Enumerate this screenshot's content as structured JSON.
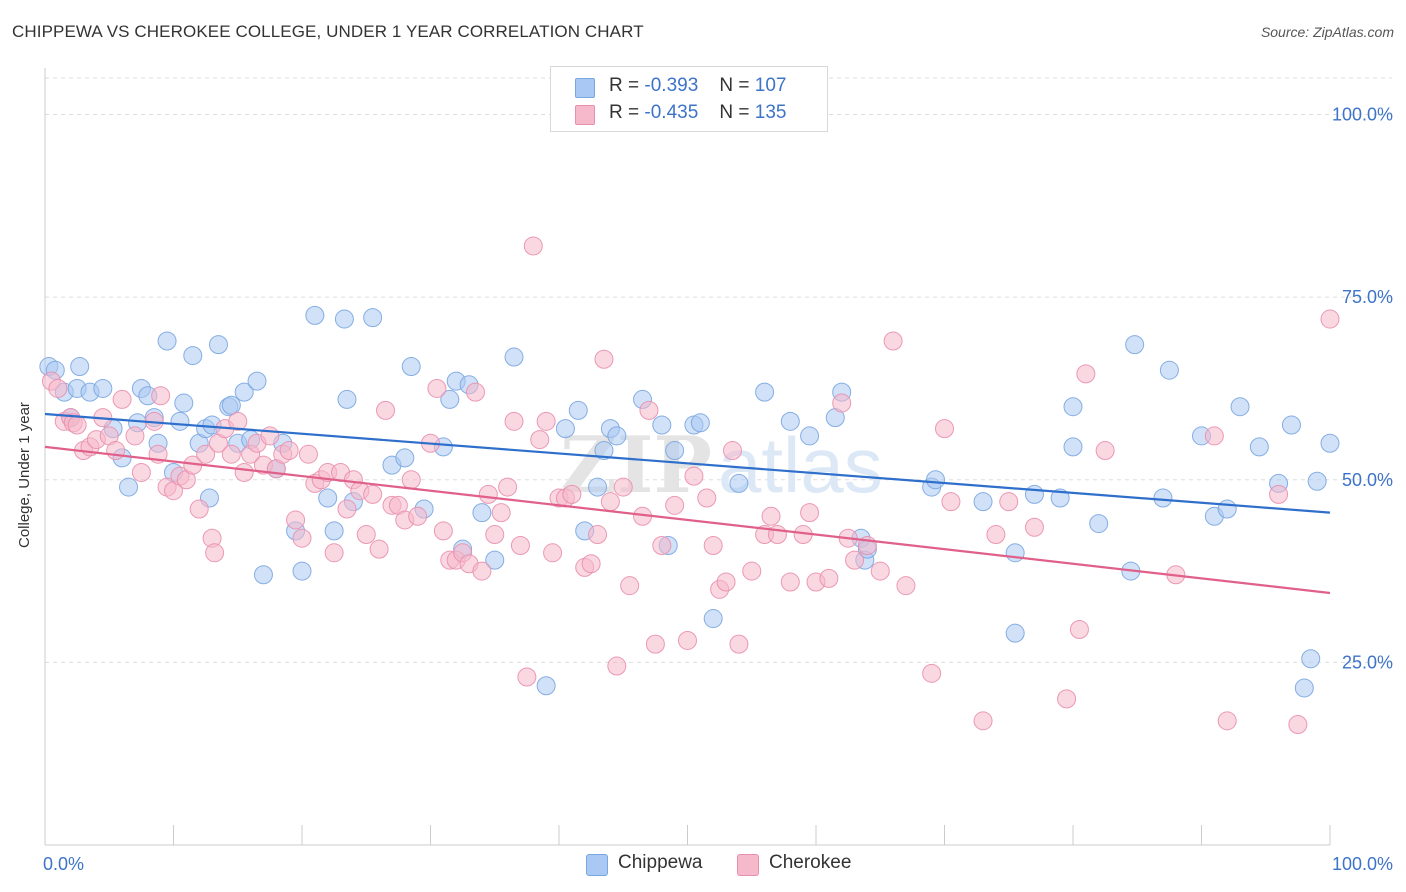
{
  "header": {
    "title": "CHIPPEWA VS CHEROKEE COLLEGE, UNDER 1 YEAR CORRELATION CHART",
    "source": "Source: ZipAtlas.com"
  },
  "legend": {
    "rows": [
      {
        "r_label": "R =",
        "r_value": "-0.393",
        "n_label": "N =",
        "n_value": "107"
      },
      {
        "r_label": "R =",
        "r_value": "-0.435",
        "n_label": "N =",
        "n_value": "135"
      }
    ]
  },
  "bottom_legend": {
    "items": [
      "Chippewa",
      "Cherokee"
    ]
  },
  "colors": {
    "chippewa_fill": "#a9c8f3",
    "chippewa_stroke": "#7aa6e0",
    "chippewa_line": "#2f6fcc",
    "cherokee_fill": "#f6b8cb",
    "cherokee_stroke": "#e98fae",
    "cherokee_line": "#e0608a",
    "axis_label": "#3d73c8",
    "grid": "#dddddd"
  },
  "chart_data": {
    "type": "scatter",
    "title": "CHIPPEWA VS CHEROKEE COLLEGE, UNDER 1 YEAR CORRELATION CHART",
    "xlabel": "",
    "ylabel": "College, Under 1 year",
    "xlim": [
      0,
      100
    ],
    "ylim": [
      0,
      105
    ],
    "x_tick_labels": [
      "0.0%",
      "100.0%"
    ],
    "y_tick_labels": [
      "25.0%",
      "50.0%",
      "75.0%",
      "100.0%"
    ],
    "y_ticks": [
      25,
      50,
      75,
      100
    ],
    "grid": true,
    "legend_position": "top-center",
    "watermark": "ZIPatlas",
    "series": [
      {
        "name": "Chippewa",
        "r": -0.393,
        "n": 107,
        "trend": {
          "x": [
            0,
            100
          ],
          "y": [
            59.0,
            45.5
          ]
        },
        "points": [
          [
            0.3,
            65.5
          ],
          [
            0.8,
            65.0
          ],
          [
            1.5,
            62.0
          ],
          [
            2.0,
            58.5
          ],
          [
            2.5,
            62.5
          ],
          [
            2.7,
            65.5
          ],
          [
            3.5,
            62.0
          ],
          [
            4.5,
            62.5
          ],
          [
            5.3,
            57.0
          ],
          [
            6.0,
            53.0
          ],
          [
            6.5,
            49.0
          ],
          [
            7.2,
            57.8
          ],
          [
            7.5,
            62.5
          ],
          [
            8.0,
            61.5
          ],
          [
            8.5,
            58.5
          ],
          [
            8.8,
            55.0
          ],
          [
            9.5,
            69.0
          ],
          [
            10.0,
            51.0
          ],
          [
            10.5,
            58.0
          ],
          [
            10.8,
            60.5
          ],
          [
            11.5,
            67.0
          ],
          [
            12.0,
            55.0
          ],
          [
            12.5,
            57.0
          ],
          [
            12.8,
            47.5
          ],
          [
            13.0,
            57.5
          ],
          [
            13.5,
            68.5
          ],
          [
            14.3,
            60.0
          ],
          [
            14.5,
            60.2
          ],
          [
            15.0,
            55.0
          ],
          [
            15.5,
            62.0
          ],
          [
            16.0,
            55.5
          ],
          [
            16.5,
            63.5
          ],
          [
            17.0,
            37.0
          ],
          [
            18.0,
            51.5
          ],
          [
            18.5,
            55.0
          ],
          [
            19.5,
            43.0
          ],
          [
            20.0,
            37.5
          ],
          [
            21.0,
            72.5
          ],
          [
            22.0,
            47.5
          ],
          [
            22.5,
            43.0
          ],
          [
            23.3,
            72.0
          ],
          [
            23.5,
            61.0
          ],
          [
            24.0,
            47.0
          ],
          [
            25.5,
            72.2
          ],
          [
            27.0,
            52.0
          ],
          [
            28.0,
            53.0
          ],
          [
            28.5,
            65.5
          ],
          [
            29.5,
            46.0
          ],
          [
            31.0,
            54.5
          ],
          [
            31.5,
            61.0
          ],
          [
            32.0,
            63.5
          ],
          [
            32.5,
            40.5
          ],
          [
            33.0,
            63.0
          ],
          [
            34.0,
            45.5
          ],
          [
            35.0,
            39.0
          ],
          [
            36.5,
            66.8
          ],
          [
            39.0,
            21.8
          ],
          [
            40.5,
            57.0
          ],
          [
            41.5,
            59.5
          ],
          [
            42.0,
            43.0
          ],
          [
            43.0,
            49.0
          ],
          [
            43.5,
            54.0
          ],
          [
            44.0,
            57.0
          ],
          [
            44.5,
            56.0
          ],
          [
            46.5,
            61.0
          ],
          [
            48.0,
            57.5
          ],
          [
            48.5,
            41.0
          ],
          [
            49.0,
            54.0
          ],
          [
            50.5,
            57.5
          ],
          [
            51.0,
            57.8
          ],
          [
            52.0,
            31.0
          ],
          [
            54.0,
            49.5
          ],
          [
            56.0,
            62.0
          ],
          [
            58.0,
            58.0
          ],
          [
            59.5,
            56.0
          ],
          [
            61.5,
            58.5
          ],
          [
            62.0,
            62.0
          ],
          [
            63.5,
            42.0
          ],
          [
            63.8,
            39.0
          ],
          [
            64.0,
            40.5
          ],
          [
            69.0,
            49.0
          ],
          [
            69.3,
            50.0
          ],
          [
            73.0,
            47.0
          ],
          [
            75.5,
            29.0
          ],
          [
            75.5,
            40.0
          ],
          [
            77.0,
            48.0
          ],
          [
            79.0,
            47.5
          ],
          [
            80.0,
            54.5
          ],
          [
            80.0,
            60.0
          ],
          [
            82.0,
            44.0
          ],
          [
            84.5,
            37.5
          ],
          [
            84.8,
            68.5
          ],
          [
            87.0,
            47.5
          ],
          [
            87.5,
            65.0
          ],
          [
            90.0,
            56.0
          ],
          [
            91.0,
            45.0
          ],
          [
            92.0,
            46.0
          ],
          [
            93.0,
            60.0
          ],
          [
            94.5,
            54.5
          ],
          [
            96.0,
            49.5
          ],
          [
            97.0,
            57.5
          ],
          [
            98.0,
            21.5
          ],
          [
            98.5,
            25.5
          ],
          [
            99.0,
            49.8
          ],
          [
            100.0,
            55.0
          ]
        ]
      },
      {
        "name": "Cherokee",
        "r": -0.435,
        "n": 135,
        "trend": {
          "x": [
            0,
            100
          ],
          "y": [
            54.5,
            34.5
          ]
        },
        "points": [
          [
            0.5,
            63.5
          ],
          [
            1.0,
            62.5
          ],
          [
            1.5,
            58.0
          ],
          [
            2.0,
            58.5
          ],
          [
            2.2,
            57.8
          ],
          [
            2.5,
            57.5
          ],
          [
            3.0,
            54.0
          ],
          [
            3.5,
            54.5
          ],
          [
            4.0,
            55.5
          ],
          [
            4.5,
            58.5
          ],
          [
            5.0,
            56.0
          ],
          [
            5.5,
            54.0
          ],
          [
            6.0,
            61.0
          ],
          [
            7.0,
            56.0
          ],
          [
            7.5,
            51.0
          ],
          [
            8.5,
            58.0
          ],
          [
            8.8,
            53.5
          ],
          [
            9.0,
            61.5
          ],
          [
            9.5,
            49.0
          ],
          [
            10.0,
            48.5
          ],
          [
            10.5,
            50.5
          ],
          [
            11.0,
            50.0
          ],
          [
            11.5,
            52.0
          ],
          [
            12.0,
            46.0
          ],
          [
            12.5,
            53.5
          ],
          [
            13.0,
            42.0
          ],
          [
            13.2,
            40.0
          ],
          [
            13.5,
            55.0
          ],
          [
            14.0,
            57.0
          ],
          [
            14.5,
            53.5
          ],
          [
            15.0,
            58.0
          ],
          [
            15.5,
            51.0
          ],
          [
            16.0,
            53.5
          ],
          [
            16.5,
            55.0
          ],
          [
            17.0,
            52.0
          ],
          [
            17.5,
            56.0
          ],
          [
            18.0,
            51.5
          ],
          [
            18.5,
            53.5
          ],
          [
            19.0,
            54.0
          ],
          [
            19.5,
            44.5
          ],
          [
            20.0,
            42.0
          ],
          [
            20.5,
            53.5
          ],
          [
            21.0,
            49.5
          ],
          [
            21.5,
            50.0
          ],
          [
            22.0,
            51.0
          ],
          [
            22.5,
            40.0
          ],
          [
            23.0,
            51.0
          ],
          [
            23.5,
            46.0
          ],
          [
            24.0,
            50.0
          ],
          [
            24.5,
            48.5
          ],
          [
            25.0,
            42.5
          ],
          [
            25.5,
            48.0
          ],
          [
            26.0,
            40.5
          ],
          [
            26.5,
            59.5
          ],
          [
            27.0,
            46.5
          ],
          [
            27.5,
            46.5
          ],
          [
            28.0,
            44.5
          ],
          [
            28.5,
            50.0
          ],
          [
            29.0,
            45.0
          ],
          [
            30.0,
            55.0
          ],
          [
            30.5,
            62.5
          ],
          [
            31.0,
            43.0
          ],
          [
            31.5,
            39.0
          ],
          [
            32.0,
            39.0
          ],
          [
            32.5,
            40.0
          ],
          [
            33.0,
            38.5
          ],
          [
            33.5,
            62.0
          ],
          [
            34.0,
            37.5
          ],
          [
            34.5,
            48.0
          ],
          [
            35.0,
            42.5
          ],
          [
            35.5,
            45.5
          ],
          [
            36.0,
            49.0
          ],
          [
            36.5,
            58.0
          ],
          [
            37.0,
            41.0
          ],
          [
            37.5,
            23.0
          ],
          [
            38.0,
            82.0
          ],
          [
            38.5,
            55.5
          ],
          [
            39.0,
            58.0
          ],
          [
            39.5,
            40.0
          ],
          [
            40.0,
            47.5
          ],
          [
            40.5,
            47.5
          ],
          [
            41.0,
            48.0
          ],
          [
            42.0,
            38.0
          ],
          [
            42.5,
            38.5
          ],
          [
            43.0,
            42.5
          ],
          [
            43.5,
            66.5
          ],
          [
            44.0,
            47.0
          ],
          [
            44.5,
            24.5
          ],
          [
            45.0,
            49.0
          ],
          [
            45.5,
            35.5
          ],
          [
            46.5,
            45.0
          ],
          [
            47.0,
            59.5
          ],
          [
            47.5,
            27.5
          ],
          [
            48.0,
            41.0
          ],
          [
            49.0,
            46.5
          ],
          [
            50.0,
            28.0
          ],
          [
            50.5,
            50.5
          ],
          [
            51.5,
            47.5
          ],
          [
            52.0,
            41.0
          ],
          [
            52.5,
            35.0
          ],
          [
            53.0,
            36.0
          ],
          [
            53.5,
            54.0
          ],
          [
            54.0,
            27.5
          ],
          [
            55.0,
            37.5
          ],
          [
            56.0,
            42.5
          ],
          [
            56.5,
            45.0
          ],
          [
            57.0,
            42.5
          ],
          [
            58.0,
            36.0
          ],
          [
            59.0,
            42.5
          ],
          [
            59.5,
            45.5
          ],
          [
            60.0,
            36.0
          ],
          [
            61.0,
            36.5
          ],
          [
            62.0,
            60.5
          ],
          [
            62.5,
            42.0
          ],
          [
            63.0,
            39.0
          ],
          [
            64.0,
            41.0
          ],
          [
            65.0,
            37.5
          ],
          [
            66.0,
            69.0
          ],
          [
            67.0,
            35.5
          ],
          [
            69.0,
            23.5
          ],
          [
            70.0,
            57.0
          ],
          [
            70.5,
            47.0
          ],
          [
            73.0,
            17.0
          ],
          [
            74.0,
            42.5
          ],
          [
            75.0,
            47.0
          ],
          [
            77.0,
            43.5
          ],
          [
            79.5,
            20.0
          ],
          [
            80.5,
            29.5
          ],
          [
            81.0,
            64.5
          ],
          [
            82.5,
            54.0
          ],
          [
            88.0,
            37.0
          ],
          [
            91.0,
            56.0
          ],
          [
            92.0,
            17.0
          ],
          [
            96.0,
            48.0
          ],
          [
            97.5,
            16.5
          ],
          [
            100.0,
            72.0
          ]
        ]
      }
    ]
  }
}
